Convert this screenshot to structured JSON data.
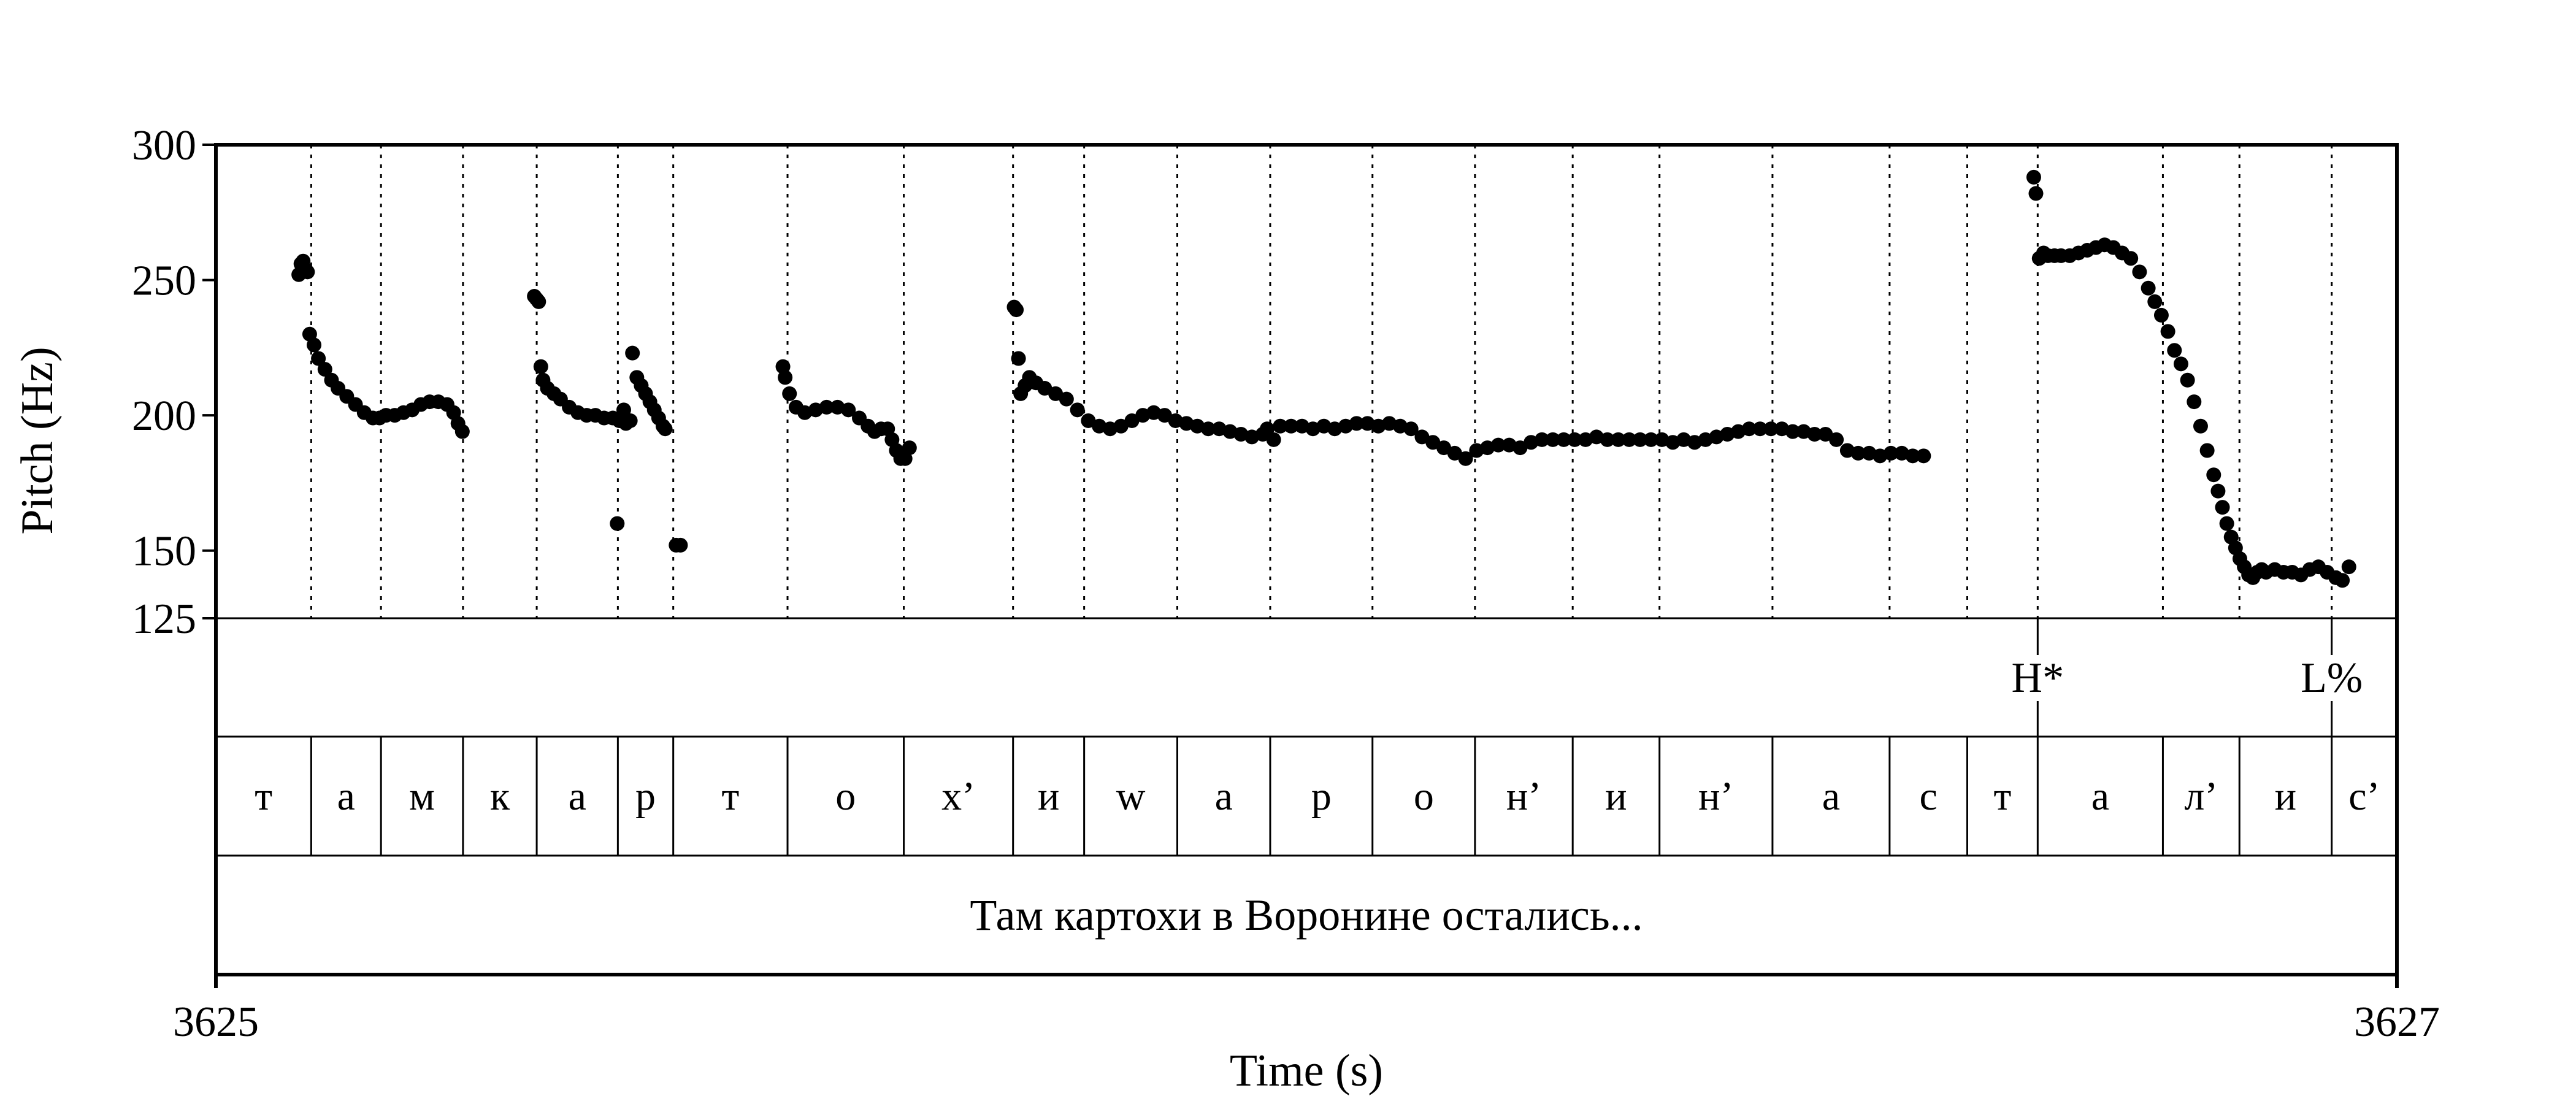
{
  "chart_data": {
    "type": "scatter",
    "ylabel": "Pitch (Hz)",
    "xlabel": "Time (s)",
    "x_start_label": "3625",
    "x_end_label": "3627",
    "xlim": [
      0,
      1
    ],
    "ylim": [
      125,
      300
    ],
    "y_ticks": [
      {
        "value": 300,
        "label": "300"
      },
      {
        "value": 250,
        "label": "250"
      },
      {
        "value": 200,
        "label": "200"
      },
      {
        "value": 150,
        "label": "150"
      },
      {
        "value": 125,
        "label": "125"
      }
    ],
    "boundaries": [
      0.0437,
      0.0757,
      0.1133,
      0.1471,
      0.1843,
      0.2097,
      0.2621,
      0.3154,
      0.3655,
      0.3981,
      0.4408,
      0.4834,
      0.5303,
      0.5773,
      0.6221,
      0.6619,
      0.7137,
      0.7674,
      0.803,
      0.8353,
      0.8927,
      0.9278,
      0.9701
    ],
    "segments": [
      "т",
      "а",
      "м",
      "к",
      "а",
      "р",
      "т",
      "о",
      "х’",
      "и",
      "w",
      "а",
      "р",
      "о",
      "н’",
      "и",
      "н’",
      "а",
      "с",
      "т",
      "а",
      "л’",
      "и",
      "с’"
    ],
    "tones": [
      {
        "label": "H*",
        "x": 0.8353
      },
      {
        "label": "L%",
        "x": 0.9701
      }
    ],
    "sentence": "Там картохи в Воронине остались...",
    "pitch_series": [
      {
        "x": [
          0.038,
          0.039,
          0.04,
          0.041,
          0.042
        ],
        "y": [
          252,
          256,
          257,
          254,
          253
        ]
      },
      {
        "x": [
          0.043,
          0.045,
          0.047,
          0.05,
          0.053,
          0.056,
          0.06,
          0.064,
          0.068,
          0.072,
          0.075,
          0.078,
          0.082,
          0.086,
          0.09,
          0.094,
          0.098,
          0.102,
          0.106,
          0.109,
          0.111,
          0.113
        ],
        "y": [
          230,
          226,
          221,
          217,
          213,
          210,
          207,
          204,
          201,
          199,
          199,
          200,
          200,
          201,
          202,
          204,
          205,
          205,
          204,
          201,
          197,
          194
        ]
      },
      {
        "x": [
          0.146,
          0.147,
          0.148
        ],
        "y": [
          244,
          243,
          242
        ]
      },
      {
        "x": [
          0.149,
          0.15,
          0.152,
          0.155,
          0.158,
          0.162,
          0.166,
          0.17,
          0.174,
          0.178,
          0.182,
          0.185,
          0.188
        ],
        "y": [
          218,
          213,
          210,
          208,
          206,
          203,
          201,
          200,
          200,
          199,
          199,
          198,
          197
        ]
      },
      {
        "x": [
          0.184,
          0.187,
          0.19
        ],
        "y": [
          160,
          202,
          198
        ]
      },
      {
        "x": [
          0.191,
          0.193,
          0.195,
          0.197,
          0.199,
          0.201,
          0.203,
          0.205,
          0.206
        ],
        "y": [
          223,
          214,
          211,
          208,
          205,
          202,
          199,
          196,
          195
        ]
      },
      {
        "x": [
          0.211,
          0.213
        ],
        "y": [
          152,
          152
        ]
      },
      {
        "x": [
          0.26,
          0.261,
          0.263,
          0.266,
          0.27,
          0.275,
          0.28,
          0.285,
          0.29,
          0.295,
          0.299,
          0.302,
          0.305,
          0.308,
          0.31,
          0.312,
          0.314,
          0.316,
          0.318
        ],
        "y": [
          218,
          214,
          208,
          203,
          201,
          202,
          203,
          203,
          202,
          199,
          196,
          194,
          195,
          195,
          191,
          187,
          184,
          184,
          188
        ]
      },
      {
        "x": [
          0.366,
          0.367,
          0.368,
          0.369
        ],
        "y": [
          240,
          239,
          221,
          208
        ]
      },
      {
        "x": [
          0.371,
          0.373,
          0.376,
          0.38,
          0.385,
          0.39,
          0.395,
          0.4,
          0.405,
          0.41,
          0.415,
          0.42,
          0.425,
          0.43,
          0.435,
          0.44,
          0.445,
          0.45,
          0.455,
          0.46,
          0.465,
          0.47,
          0.475,
          0.48,
          0.482,
          0.485
        ],
        "y": [
          211,
          214,
          212,
          210,
          208,
          206,
          202,
          198,
          196,
          195,
          196,
          198,
          200,
          201,
          200,
          198,
          197,
          196,
          195,
          195,
          194,
          193,
          192,
          193,
          195,
          191
        ]
      },
      {
        "x": [
          0.488,
          0.493,
          0.498,
          0.503,
          0.508,
          0.513,
          0.518,
          0.523,
          0.528,
          0.533,
          0.538,
          0.543,
          0.548,
          0.553,
          0.558,
          0.563,
          0.568,
          0.573,
          0.578,
          0.583,
          0.588,
          0.593,
          0.598,
          0.603,
          0.608,
          0.613,
          0.618,
          0.623,
          0.628,
          0.633,
          0.638,
          0.643,
          0.648,
          0.653,
          0.658,
          0.663,
          0.668,
          0.673,
          0.678,
          0.683,
          0.688,
          0.693,
          0.698,
          0.703,
          0.708,
          0.713,
          0.718,
          0.723,
          0.728,
          0.733,
          0.738,
          0.743,
          0.748,
          0.753,
          0.758,
          0.763,
          0.768,
          0.773,
          0.778,
          0.783
        ],
        "y": [
          196,
          196,
          196,
          195,
          196,
          195,
          196,
          197,
          197,
          196,
          197,
          196,
          195,
          192,
          190,
          188,
          186,
          184,
          187,
          188,
          189,
          189,
          188,
          190,
          191,
          191,
          191,
          191,
          191,
          192,
          191,
          191,
          191,
          191,
          191,
          191,
          190,
          191,
          190,
          191,
          192,
          193,
          194,
          195,
          195,
          195,
          195,
          194,
          194,
          193,
          193,
          191,
          187,
          186,
          186,
          185,
          186,
          186,
          185,
          185
        ]
      },
      {
        "x": [
          0.8335,
          0.8345
        ],
        "y": [
          288,
          282
        ]
      },
      {
        "x": [
          0.836,
          0.838,
          0.84,
          0.843,
          0.846,
          0.85,
          0.854,
          0.858,
          0.862,
          0.866,
          0.87,
          0.874,
          0.878,
          0.882,
          0.886,
          0.889,
          0.892,
          0.895,
          0.898,
          0.901,
          0.904,
          0.907,
          0.91,
          0.913,
          0.916,
          0.918,
          0.92,
          0.922,
          0.924,
          0.926,
          0.928,
          0.93,
          0.932,
          0.934,
          0.936,
          0.938,
          0.94,
          0.944,
          0.948,
          0.952,
          0.956,
          0.96,
          0.964,
          0.968,
          0.972,
          0.975,
          0.978
        ],
        "y": [
          258,
          260,
          259,
          259,
          259,
          259,
          260,
          261,
          262,
          263,
          262,
          260,
          258,
          253,
          247,
          242,
          237,
          231,
          224,
          219,
          213,
          205,
          196,
          187,
          178,
          172,
          166,
          160,
          155,
          151,
          147,
          144,
          141,
          140,
          142,
          143,
          142,
          143,
          142,
          142,
          141,
          143,
          144,
          142,
          140,
          139,
          144
        ]
      }
    ]
  }
}
